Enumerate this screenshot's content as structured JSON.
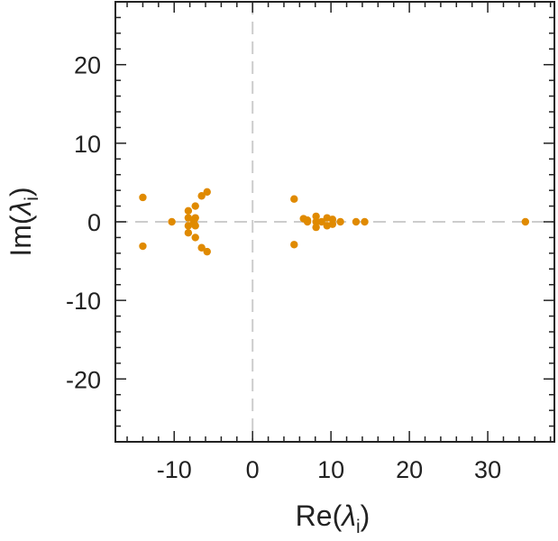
{
  "chart_data": {
    "type": "scatter",
    "xlabel": {
      "prefix": "Re(",
      "symbol": "λ",
      "subscript": "i",
      "suffix": ")"
    },
    "ylabel": {
      "prefix": "Im(",
      "symbol": "λ",
      "subscript": "i",
      "suffix": ")"
    },
    "xlim": [
      -17.5,
      38.5
    ],
    "ylim": [
      -28,
      28
    ],
    "xticks": [
      -10,
      0,
      10,
      20,
      30
    ],
    "yticks": [
      -20,
      -10,
      0,
      10,
      20
    ],
    "grid": false,
    "legend": "none",
    "reference_lines": {
      "x": 0,
      "y": 0,
      "style": "dashed"
    },
    "colors": {
      "points": "#e08a00",
      "reference": "#cccccc",
      "frame": "#222222"
    },
    "series": [
      {
        "points": [
          [
            -14,
            3.1
          ],
          [
            -14,
            -3.1
          ],
          [
            -10.3,
            0
          ],
          [
            -8.2,
            1.4
          ],
          [
            -8.2,
            0.5
          ],
          [
            -8.2,
            -0.5
          ],
          [
            -8.2,
            -1.4
          ],
          [
            -7.5,
            0
          ],
          [
            -7.3,
            0.5
          ],
          [
            -7.3,
            -0.5
          ],
          [
            -7.3,
            2.0
          ],
          [
            -7.3,
            -2.0
          ],
          [
            -6.5,
            3.3
          ],
          [
            -6.5,
            -3.3
          ],
          [
            -5.8,
            3.8
          ],
          [
            -5.8,
            -3.8
          ],
          [
            5.3,
            2.9
          ],
          [
            5.3,
            -2.9
          ],
          [
            6.5,
            0.4
          ],
          [
            7.0,
            0
          ],
          [
            7.0,
            0.2
          ],
          [
            8.1,
            0.7
          ],
          [
            8.1,
            0
          ],
          [
            8.1,
            -0.7
          ],
          [
            8.8,
            0
          ],
          [
            9.5,
            0.5
          ],
          [
            9.5,
            -0.5
          ],
          [
            10.2,
            0.3
          ],
          [
            10.2,
            -0.3
          ],
          [
            11.2,
            0
          ],
          [
            13.2,
            0
          ],
          [
            14.3,
            0
          ],
          [
            34.8,
            0
          ]
        ]
      }
    ]
  }
}
